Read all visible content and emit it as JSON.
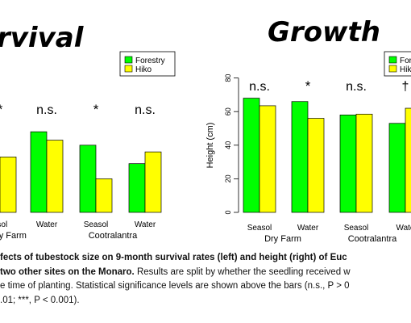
{
  "titles": {
    "left": "rvival",
    "right": "Growth"
  },
  "legend": {
    "items": [
      {
        "label": "Forestry",
        "color": "#00ff00"
      },
      {
        "label": "Hiko",
        "color": "#ffff00"
      }
    ]
  },
  "chart_data": [
    {
      "type": "bar",
      "title": "rvival",
      "categories": [
        "Seasol",
        "Water",
        "Seasol",
        "Water"
      ],
      "groups": [
        "Dry Farm",
        "Cootralantra"
      ],
      "series": [
        {
          "name": "Forestry",
          "values": [
            null,
            48,
            40,
            29
          ]
        },
        {
          "name": "Hiko",
          "values": [
            33,
            43,
            20,
            36
          ]
        }
      ],
      "significance": [
        "*",
        "n.s.",
        "*",
        "n.s."
      ],
      "tick_labels_x": [
        "asol",
        "Water",
        "Seasol",
        "Water"
      ],
      "group_labels": [
        "Dry Farm",
        "Cootralantra"
      ]
    },
    {
      "type": "bar",
      "title": "Growth",
      "categories": [
        "Seasol",
        "Water",
        "Seasol",
        "Water"
      ],
      "groups": [
        "Dry Farm",
        "Cootralantra"
      ],
      "series": [
        {
          "name": "Forestry",
          "values": [
            68,
            66,
            58,
            53
          ]
        },
        {
          "name": "Hiko",
          "values": [
            63.5,
            56,
            58.5,
            62
          ]
        }
      ],
      "significance": [
        "n.s.",
        "*",
        "n.s.",
        "†"
      ],
      "ylabel": "Height (cm)",
      "ylim": [
        0,
        80
      ],
      "yticks": [
        "0",
        "20",
        "40",
        "60",
        "80"
      ],
      "tick_labels_x": [
        "Seasol",
        "Water",
        "Seasol",
        "Wate"
      ],
      "group_labels": [
        "Dry Farm",
        "Cootralantra"
      ]
    }
  ],
  "caption": {
    "bold_line": "fects of tubestock size on 9-month survival rates (left) and height (right) of Euc",
    "bold_part": "two other sites on the Monaro.",
    "normal_part": " Results are split by whether the seedling received w",
    "line3": "e time of planting.  Statistical significance levels are shown above the bars (n.s., P > 0",
    "line4": ".01; ***, P < 0.001)."
  }
}
